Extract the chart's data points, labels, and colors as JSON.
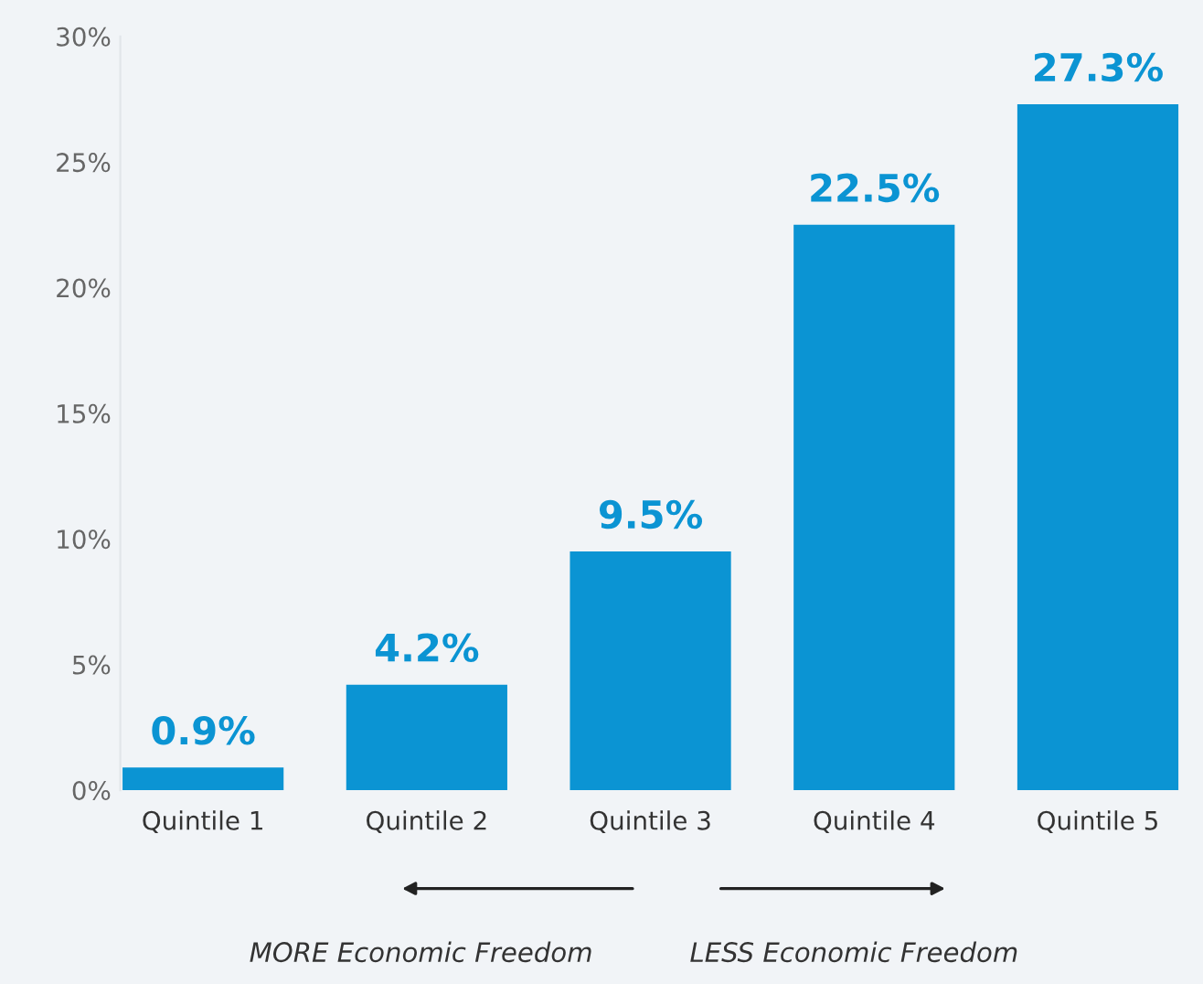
{
  "chart_data": {
    "type": "bar",
    "categories": [
      "Quintile 1",
      "Quintile 2",
      "Quintile 3",
      "Quintile 4",
      "Quintile 5"
    ],
    "values": [
      0.9,
      4.2,
      9.5,
      22.5,
      27.3
    ],
    "value_labels": [
      "0.9%",
      "4.2%",
      "9.5%",
      "22.5%",
      "27.3%"
    ],
    "color": "#0b94d3",
    "ylim": [
      0,
      30
    ],
    "yticks": [
      {
        "value": 0,
        "label": "0%"
      },
      {
        "value": 5,
        "label": "5%"
      },
      {
        "value": 10,
        "label": "10%"
      },
      {
        "value": 15,
        "label": "15%"
      },
      {
        "value": 20,
        "label": "20%"
      },
      {
        "value": 25,
        "label": "25%"
      },
      {
        "value": 30,
        "label": "30%"
      }
    ],
    "grid": false,
    "annotations": [
      "MORE Economic Freedom",
      "LESS Economic Freedom"
    ]
  }
}
